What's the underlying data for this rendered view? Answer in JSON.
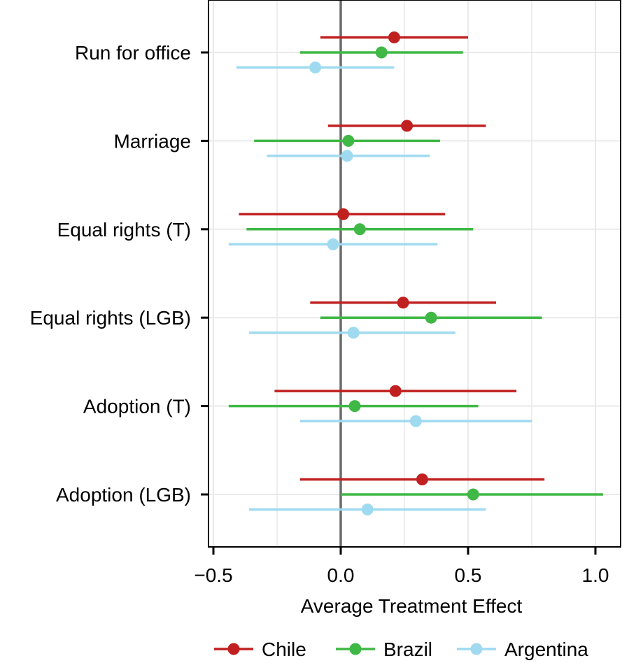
{
  "chart_data": {
    "type": "forest",
    "xlabel": "Average Treatment Effect",
    "xlim": [
      -0.52,
      1.1
    ],
    "xticks": [
      -0.5,
      0.0,
      0.5,
      1.0
    ],
    "xtick_labels": [
      "−0.5",
      "0.0",
      "0.5",
      "1.0"
    ],
    "reference_line": 0,
    "categories": [
      "Run for office",
      "Marriage",
      "Equal rights (T)",
      "Equal rights (LGB)",
      "Adoption (T)",
      "Adoption (LGB)"
    ],
    "series": [
      {
        "name": "Chile",
        "color": "#c0201f",
        "estimates": [
          0.21,
          0.26,
          0.01,
          0.245,
          0.215,
          0.32
        ],
        "lower": [
          -0.08,
          -0.05,
          -0.4,
          -0.12,
          -0.26,
          -0.16
        ],
        "upper": [
          0.5,
          0.57,
          0.41,
          0.61,
          0.69,
          0.8
        ]
      },
      {
        "name": "Brazil",
        "color": "#3fb845",
        "estimates": [
          0.16,
          0.03,
          0.075,
          0.355,
          0.055,
          0.52
        ],
        "lower": [
          -0.16,
          -0.34,
          -0.37,
          -0.08,
          -0.44,
          0.0
        ],
        "upper": [
          0.48,
          0.39,
          0.52,
          0.79,
          0.54,
          1.03
        ]
      },
      {
        "name": "Argentina",
        "color": "#9fdaf0",
        "estimates": [
          -0.1,
          0.025,
          -0.03,
          0.05,
          0.295,
          0.105
        ],
        "lower": [
          -0.41,
          -0.29,
          -0.44,
          -0.36,
          -0.16,
          -0.36
        ],
        "upper": [
          0.21,
          0.35,
          0.38,
          0.45,
          0.75,
          0.57
        ]
      }
    ],
    "legend": [
      "Chile",
      "Brazil",
      "Argentina"
    ],
    "legend_position": "bottom",
    "grid": true
  }
}
